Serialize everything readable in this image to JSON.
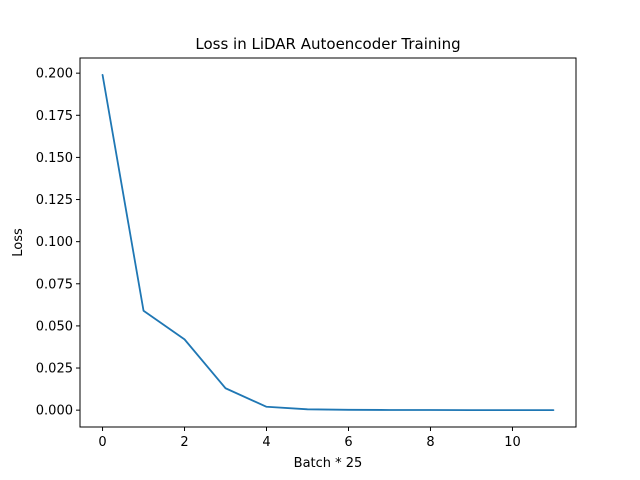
{
  "chart_data": {
    "type": "line",
    "title": "Loss in LiDAR Autoencoder Training",
    "xlabel": "Batch * 25",
    "ylabel": "Loss",
    "xlim": [
      -0.55,
      11.55
    ],
    "ylim": [
      -0.01,
      0.209
    ],
    "x_ticks": [
      0,
      2,
      4,
      6,
      8,
      10
    ],
    "y_ticks": [
      0.0,
      0.025,
      0.05,
      0.075,
      0.1,
      0.125,
      0.15,
      0.175,
      0.2
    ],
    "x_tick_labels": [
      "0",
      "2",
      "4",
      "6",
      "8",
      "10"
    ],
    "y_tick_labels": [
      "0.000",
      "0.025",
      "0.050",
      "0.075",
      "0.100",
      "0.125",
      "0.150",
      "0.175",
      "0.200"
    ],
    "grid": false,
    "series": [
      {
        "color": "#1f77b4",
        "x": [
          0,
          1,
          2,
          3,
          4,
          5,
          6,
          7,
          8,
          9,
          10,
          11
        ],
        "y": [
          0.199,
          0.059,
          0.042,
          0.013,
          0.002,
          0.0005,
          0.0002,
          0.0001,
          0.0001,
          0.0,
          0.0,
          0.0
        ]
      }
    ]
  }
}
